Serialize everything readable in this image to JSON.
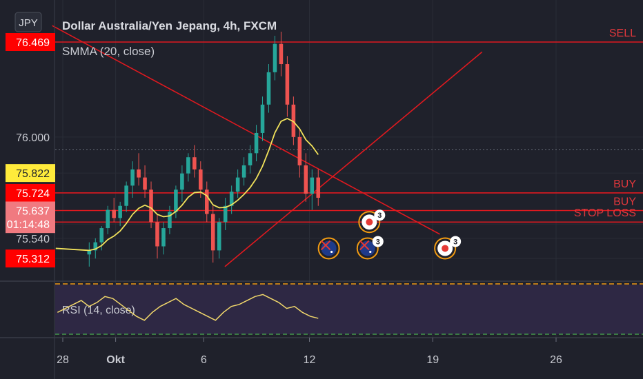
{
  "header": {
    "currency_badge": "JPY",
    "title": "Dollar Australia/Yen Jepang, 4h, FXCM",
    "indicator": "SMMA (20, close)",
    "rsi_label": "RSI (14, close)"
  },
  "price_scale": [
    {
      "label": "76.469",
      "value": 76.469,
      "style": "red"
    },
    {
      "label": "76.000",
      "value": 76.0,
      "style": "plain"
    },
    {
      "label": "75.822",
      "value": 75.822,
      "style": "yellow"
    },
    {
      "label": "75.724",
      "value": 75.724,
      "style": "red"
    },
    {
      "label": "75.637",
      "value": 75.637,
      "style": "pink"
    },
    {
      "label": "01:14:48",
      "value": 75.57,
      "style": "pink"
    },
    {
      "label": "75.540",
      "value": 75.5,
      "style": "plain"
    },
    {
      "label": "75.312",
      "value": 75.4,
      "style": "red"
    }
  ],
  "time_axis": [
    {
      "label": "28",
      "day": 0
    },
    {
      "label": "Okt",
      "day": 3
    },
    {
      "label": "6",
      "day": 8
    },
    {
      "label": "12",
      "day": 14
    },
    {
      "label": "19",
      "day": 21
    },
    {
      "label": "26",
      "day": 28
    }
  ],
  "levels": [
    {
      "name": "SELL",
      "value": 76.469
    },
    {
      "name": "BUY",
      "value": 75.724
    },
    {
      "name": "BUY",
      "value": 75.637
    },
    {
      "name": "STOP LOSS",
      "value": 75.58
    }
  ],
  "chart_data": {
    "type": "candlestick",
    "title": "Dollar Australia/Yen Jepang, 4h, FXCM",
    "price_range": [
      75.38,
      76.54
    ],
    "day_range": [
      -0.6,
      35
    ],
    "smma_value": 75.822,
    "candles": [
      {
        "o": 75.42,
        "h": 75.48,
        "l": 75.36,
        "c": 75.44
      },
      {
        "o": 75.44,
        "h": 75.5,
        "l": 75.4,
        "c": 75.48
      },
      {
        "o": 75.48,
        "h": 75.56,
        "l": 75.44,
        "c": 75.55
      },
      {
        "o": 75.55,
        "h": 75.66,
        "l": 75.52,
        "c": 75.64
      },
      {
        "o": 75.64,
        "h": 75.7,
        "l": 75.58,
        "c": 75.6
      },
      {
        "o": 75.6,
        "h": 75.68,
        "l": 75.56,
        "c": 75.66
      },
      {
        "o": 75.66,
        "h": 75.78,
        "l": 75.63,
        "c": 75.76
      },
      {
        "o": 75.76,
        "h": 75.88,
        "l": 75.7,
        "c": 75.84
      },
      {
        "o": 75.84,
        "h": 75.92,
        "l": 75.76,
        "c": 75.8
      },
      {
        "o": 75.8,
        "h": 75.86,
        "l": 75.7,
        "c": 75.74
      },
      {
        "o": 75.74,
        "h": 75.78,
        "l": 75.55,
        "c": 75.58
      },
      {
        "o": 75.58,
        "h": 75.62,
        "l": 75.4,
        "c": 75.46
      },
      {
        "o": 75.46,
        "h": 75.58,
        "l": 75.42,
        "c": 75.55
      },
      {
        "o": 75.55,
        "h": 75.66,
        "l": 75.52,
        "c": 75.63
      },
      {
        "o": 75.63,
        "h": 75.76,
        "l": 75.6,
        "c": 75.74
      },
      {
        "o": 75.74,
        "h": 75.86,
        "l": 75.68,
        "c": 75.82
      },
      {
        "o": 75.82,
        "h": 75.92,
        "l": 75.78,
        "c": 75.9
      },
      {
        "o": 75.9,
        "h": 75.96,
        "l": 75.8,
        "c": 75.84
      },
      {
        "o": 75.84,
        "h": 75.88,
        "l": 75.7,
        "c": 75.74
      },
      {
        "o": 75.74,
        "h": 75.78,
        "l": 75.58,
        "c": 75.62
      },
      {
        "o": 75.62,
        "h": 75.66,
        "l": 75.38,
        "c": 75.44
      },
      {
        "o": 75.44,
        "h": 75.6,
        "l": 75.4,
        "c": 75.58
      },
      {
        "o": 75.58,
        "h": 75.7,
        "l": 75.54,
        "c": 75.66
      },
      {
        "o": 75.66,
        "h": 75.76,
        "l": 75.62,
        "c": 75.73
      },
      {
        "o": 75.73,
        "h": 75.84,
        "l": 75.7,
        "c": 75.8
      },
      {
        "o": 75.8,
        "h": 75.9,
        "l": 75.76,
        "c": 75.86
      },
      {
        "o": 75.86,
        "h": 75.96,
        "l": 75.82,
        "c": 75.92
      },
      {
        "o": 75.92,
        "h": 76.06,
        "l": 75.88,
        "c": 76.02
      },
      {
        "o": 76.02,
        "h": 76.2,
        "l": 75.98,
        "c": 76.16
      },
      {
        "o": 76.16,
        "h": 76.36,
        "l": 76.12,
        "c": 76.32
      },
      {
        "o": 76.32,
        "h": 76.5,
        "l": 76.28,
        "c": 76.46
      },
      {
        "o": 76.46,
        "h": 76.52,
        "l": 76.3,
        "c": 76.36
      },
      {
        "o": 76.36,
        "h": 76.4,
        "l": 76.1,
        "c": 76.16
      },
      {
        "o": 76.16,
        "h": 76.2,
        "l": 75.96,
        "c": 76.0
      },
      {
        "o": 76.0,
        "h": 76.04,
        "l": 75.8,
        "c": 75.86
      },
      {
        "o": 75.86,
        "h": 75.92,
        "l": 75.68,
        "c": 75.72
      },
      {
        "o": 75.72,
        "h": 75.84,
        "l": 75.64,
        "c": 75.8
      },
      {
        "o": 75.8,
        "h": 75.84,
        "l": 75.66,
        "c": 75.7
      }
    ],
    "rsi": [
      52,
      56,
      60,
      64,
      58,
      62,
      68,
      66,
      60,
      54,
      48,
      44,
      52,
      58,
      62,
      66,
      60,
      56,
      52,
      48,
      44,
      52,
      58,
      60,
      64,
      68,
      70,
      66,
      62,
      56,
      58,
      52,
      48,
      46
    ],
    "trendlines": [
      {
        "from": {
          "day": -0.6,
          "price": 76.55
        },
        "to": {
          "day": 21.4,
          "price": 75.52
        }
      },
      {
        "from": {
          "day": 9.2,
          "price": 75.36
        },
        "to": {
          "day": 23.8,
          "price": 76.42
        }
      }
    ],
    "event_markers": [
      {
        "kind": "jp",
        "count": "3",
        "day": 17.4,
        "price": 75.58
      },
      {
        "kind": "au",
        "count": "",
        "day": 15.1,
        "price": 75.45
      },
      {
        "kind": "au",
        "count": "3",
        "day": 17.3,
        "price": 75.45
      },
      {
        "kind": "jp",
        "count": "3",
        "day": 21.7,
        "price": 75.45
      }
    ]
  },
  "colors": {
    "background": "#1f212b",
    "up": "#26a69a",
    "down": "#ef5350",
    "level": "#e0191f",
    "smma": "#f2e35b",
    "rsi": "#f2d86b",
    "rsi_band": "#2e2844",
    "scale_red": "#ff0000",
    "scale_yellow": "#ffeb3b",
    "scale_pink": "#f07a80",
    "text": "#c9cbd2"
  }
}
